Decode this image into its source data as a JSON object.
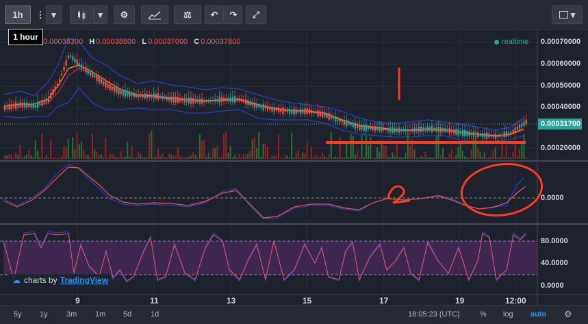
{
  "toolbar": {
    "interval": "1h",
    "tooltip": "1 hour"
  },
  "legend": {
    "o_label": "O",
    "o_value": "0.00038300",
    "h_label": "H",
    "h_value": "0.00038800",
    "l_label": "L",
    "l_value": "0.00037000",
    "c_label": "C",
    "c_value": "0.00037800",
    "realtime": "realtime"
  },
  "price_axis": [
    "0.00070000",
    "0.00060000",
    "0.00050000",
    "0.00040000",
    "0.00020000"
  ],
  "last_price": "0.00031700",
  "macd_axis": [
    "0.0000"
  ],
  "rsi_axis": [
    "80.0000",
    "40.0000",
    "0.0000"
  ],
  "time_axis": [
    "9",
    "11",
    "13",
    "15",
    "17",
    "19",
    "12:00"
  ],
  "annotations": {
    "one": "1",
    "two": "2"
  },
  "branding": {
    "prefix": "charts by",
    "name": "TradingView"
  },
  "bottom": {
    "ranges": [
      "5y",
      "1y",
      "3m",
      "1m",
      "5d",
      "1d"
    ],
    "clock": "18:05:23 (UTC)",
    "percent": "%",
    "log": "log",
    "auto": "auto"
  },
  "colors": {
    "bg": "#1e222d",
    "up": "#26a69a",
    "down": "#ef5350",
    "annotation": "#ff3b1f",
    "band": "#2741c9"
  }
}
